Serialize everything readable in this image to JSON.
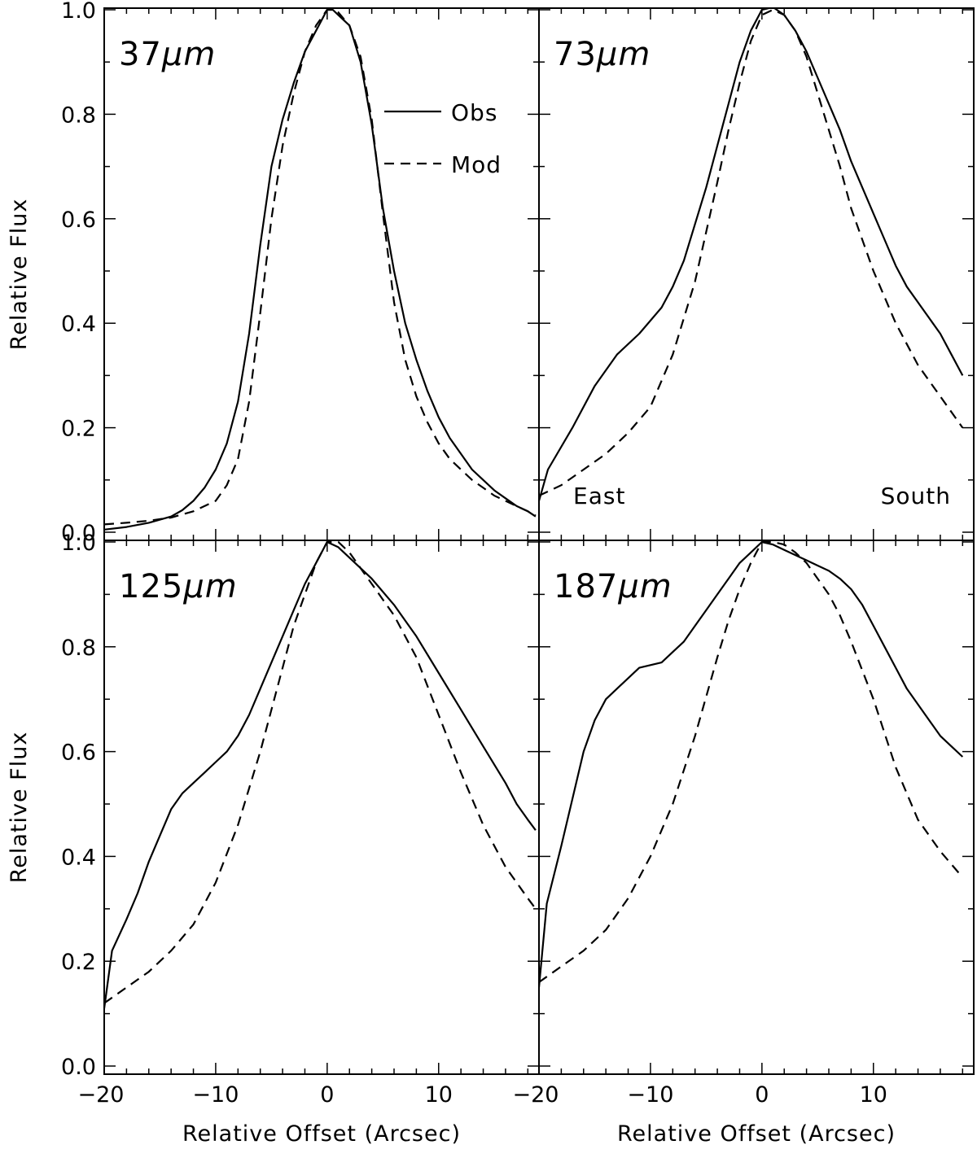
{
  "chart_data": [
    {
      "type": "line",
      "panel": "37µm",
      "panel_label": "37",
      "panel_unit": "µm",
      "xlim": [
        -20,
        19
      ],
      "ylim": [
        0.0,
        1.0
      ],
      "xticks": [
        "−20",
        "−10",
        "0",
        "10"
      ],
      "yticks": [
        "0.0",
        "0.2",
        "0.4",
        "0.6",
        "0.8",
        "1.0"
      ],
      "ylabel": "Relative Flux",
      "xlabel": "",
      "legend": {
        "placement": "top-right",
        "entries": [
          "Obs",
          "Mod"
        ]
      },
      "annotations": [],
      "series": [
        {
          "name": "Obs",
          "style": "solid",
          "x": [
            -20,
            -18,
            -16,
            -14,
            -13,
            -12,
            -11,
            -10,
            -9,
            -8,
            -7,
            -6,
            -5,
            -4,
            -3,
            -2,
            -1,
            0,
            0.5,
            1,
            2,
            3,
            4,
            5,
            6,
            7,
            8,
            9,
            10,
            11,
            12,
            13,
            14,
            15,
            16,
            17,
            18,
            18.7
          ],
          "y": [
            0.005,
            0.01,
            0.018,
            0.03,
            0.042,
            0.06,
            0.085,
            0.12,
            0.17,
            0.25,
            0.38,
            0.55,
            0.7,
            0.79,
            0.86,
            0.92,
            0.96,
            1.0,
            1.0,
            0.99,
            0.97,
            0.9,
            0.78,
            0.62,
            0.5,
            0.4,
            0.33,
            0.27,
            0.22,
            0.18,
            0.15,
            0.12,
            0.1,
            0.08,
            0.065,
            0.05,
            0.04,
            0.03
          ]
        },
        {
          "name": "Mod",
          "style": "dashed",
          "x": [
            -20,
            -18,
            -16,
            -14,
            -12,
            -11,
            -10,
            -9,
            -8,
            -7,
            -6,
            -5,
            -4,
            -3,
            -2,
            -1,
            0,
            0.5,
            1,
            2,
            3,
            4,
            5,
            6,
            7,
            8,
            9,
            10,
            11,
            12,
            13,
            14,
            15,
            16,
            17,
            18,
            18.7
          ],
          "y": [
            0.015,
            0.018,
            0.022,
            0.028,
            0.04,
            0.05,
            0.06,
            0.09,
            0.14,
            0.25,
            0.42,
            0.6,
            0.74,
            0.84,
            0.92,
            0.97,
            1.0,
            1.0,
            0.995,
            0.97,
            0.91,
            0.79,
            0.61,
            0.44,
            0.33,
            0.26,
            0.21,
            0.17,
            0.14,
            0.12,
            0.1,
            0.085,
            0.07,
            0.06,
            0.05,
            0.04,
            0.032
          ]
        }
      ]
    },
    {
      "type": "line",
      "panel": "73µm",
      "panel_label": "73",
      "panel_unit": "µm",
      "xlim": [
        -20,
        19
      ],
      "ylim": [
        0.0,
        1.0
      ],
      "xticks": [
        "−20",
        "−10",
        "0",
        "10"
      ],
      "yticks": [],
      "ylabel": "",
      "xlabel": "",
      "annotations": [
        "East",
        "South"
      ],
      "series": [
        {
          "name": "Obs",
          "style": "solid",
          "x": [
            -20,
            -19.2,
            -17,
            -15,
            -13,
            -11,
            -9,
            -8,
            -7,
            -6,
            -5,
            -4,
            -3,
            -2,
            -1,
            0,
            1,
            2,
            3,
            4,
            5,
            6,
            7,
            8,
            9,
            10,
            11,
            12,
            13,
            14,
            15,
            16,
            17,
            18
          ],
          "y": [
            0.06,
            0.12,
            0.2,
            0.28,
            0.34,
            0.38,
            0.43,
            0.47,
            0.52,
            0.59,
            0.66,
            0.74,
            0.82,
            0.9,
            0.96,
            1.0,
            1.005,
            0.99,
            0.96,
            0.92,
            0.87,
            0.82,
            0.77,
            0.71,
            0.66,
            0.61,
            0.56,
            0.51,
            0.47,
            0.44,
            0.41,
            0.38,
            0.34,
            0.3
          ]
        },
        {
          "name": "Mod",
          "style": "dashed",
          "x": [
            -20,
            -18,
            -16,
            -14,
            -12,
            -10,
            -8,
            -6,
            -4,
            -3,
            -2,
            -1,
            0,
            1,
            2,
            3,
            4,
            5,
            6,
            7,
            8,
            10,
            12,
            14,
            16,
            18
          ],
          "y": [
            0.07,
            0.09,
            0.12,
            0.15,
            0.19,
            0.24,
            0.34,
            0.48,
            0.67,
            0.77,
            0.86,
            0.94,
            0.99,
            1.0,
            0.99,
            0.96,
            0.91,
            0.84,
            0.77,
            0.7,
            0.62,
            0.5,
            0.4,
            0.32,
            0.26,
            0.2
          ]
        }
      ]
    },
    {
      "type": "line",
      "panel": "125µm",
      "panel_label": "125",
      "panel_unit": "µm",
      "xlim": [
        -20,
        19
      ],
      "ylim": [
        0.0,
        1.0
      ],
      "xticks": [
        "−20",
        "−10",
        "0",
        "10"
      ],
      "yticks": [
        "0.0",
        "0.2",
        "0.4",
        "0.6",
        "0.8",
        "1.0"
      ],
      "ylabel": "Relative Flux",
      "xlabel": "Relative Offset (Arcsec)",
      "annotations": [],
      "series": [
        {
          "name": "Obs",
          "style": "solid",
          "x": [
            -20,
            -19.3,
            -18,
            -17,
            -16,
            -15,
            -14,
            -13,
            -12,
            -11,
            -10,
            -9,
            -8,
            -7,
            -6,
            -5,
            -4,
            -3,
            -2,
            -1,
            0,
            1,
            2,
            4,
            6,
            8,
            10,
            12,
            14,
            16,
            17,
            18,
            18.7
          ],
          "y": [
            0.11,
            0.22,
            0.28,
            0.33,
            0.39,
            0.44,
            0.49,
            0.52,
            0.54,
            0.56,
            0.58,
            0.6,
            0.63,
            0.67,
            0.72,
            0.77,
            0.82,
            0.87,
            0.92,
            0.96,
            1.0,
            0.99,
            0.97,
            0.93,
            0.88,
            0.82,
            0.75,
            0.68,
            0.61,
            0.54,
            0.5,
            0.47,
            0.45
          ]
        },
        {
          "name": "Mod",
          "style": "dashed",
          "x": [
            -20,
            -18,
            -16,
            -14,
            -12,
            -10,
            -8,
            -6,
            -4,
            -3,
            -2,
            -1,
            0,
            1,
            2,
            3,
            4,
            6,
            8,
            10,
            12,
            14,
            16,
            18,
            18.7
          ],
          "y": [
            0.12,
            0.15,
            0.18,
            0.22,
            0.27,
            0.35,
            0.46,
            0.6,
            0.76,
            0.84,
            0.9,
            0.96,
            1.0,
            1.0,
            0.98,
            0.95,
            0.92,
            0.86,
            0.78,
            0.67,
            0.56,
            0.46,
            0.38,
            0.32,
            0.3
          ]
        }
      ]
    },
    {
      "type": "line",
      "panel": "187µm",
      "panel_label": "187",
      "panel_unit": "µm",
      "xlim": [
        -20,
        19
      ],
      "ylim": [
        0.0,
        1.0
      ],
      "xticks": [
        "−20",
        "−10",
        "0",
        "10"
      ],
      "yticks": [],
      "ylabel": "",
      "xlabel": "Relative Offset (Arcsec)",
      "annotations": [],
      "series": [
        {
          "name": "Obs",
          "style": "solid",
          "x": [
            -20,
            -19.3,
            -18,
            -17,
            -16,
            -15,
            -14,
            -13,
            -12,
            -11,
            -10,
            -9,
            -8,
            -7,
            -6,
            -5,
            -4,
            -3,
            -2,
            -1,
            0,
            1,
            2,
            3,
            4,
            5,
            6,
            7,
            8,
            9,
            10,
            11,
            12,
            13,
            14,
            15,
            16,
            17,
            18
          ],
          "y": [
            0.15,
            0.31,
            0.42,
            0.51,
            0.6,
            0.66,
            0.7,
            0.72,
            0.74,
            0.76,
            0.765,
            0.77,
            0.79,
            0.81,
            0.84,
            0.87,
            0.9,
            0.93,
            0.96,
            0.98,
            1.0,
            0.995,
            0.985,
            0.975,
            0.965,
            0.955,
            0.945,
            0.93,
            0.91,
            0.88,
            0.84,
            0.8,
            0.76,
            0.72,
            0.69,
            0.66,
            0.63,
            0.61,
            0.59
          ]
        },
        {
          "name": "Mod",
          "style": "dashed",
          "x": [
            -20,
            -18,
            -16,
            -14,
            -12,
            -10,
            -8,
            -6,
            -4,
            -3,
            -2,
            -1,
            0,
            1,
            2,
            3,
            4,
            5,
            6,
            7,
            8,
            10,
            12,
            14,
            16,
            18
          ],
          "y": [
            0.16,
            0.19,
            0.22,
            0.26,
            0.32,
            0.4,
            0.5,
            0.63,
            0.78,
            0.85,
            0.91,
            0.96,
            1.0,
            1.0,
            0.995,
            0.98,
            0.96,
            0.93,
            0.9,
            0.86,
            0.81,
            0.7,
            0.57,
            0.47,
            0.41,
            0.36
          ]
        }
      ]
    }
  ]
}
